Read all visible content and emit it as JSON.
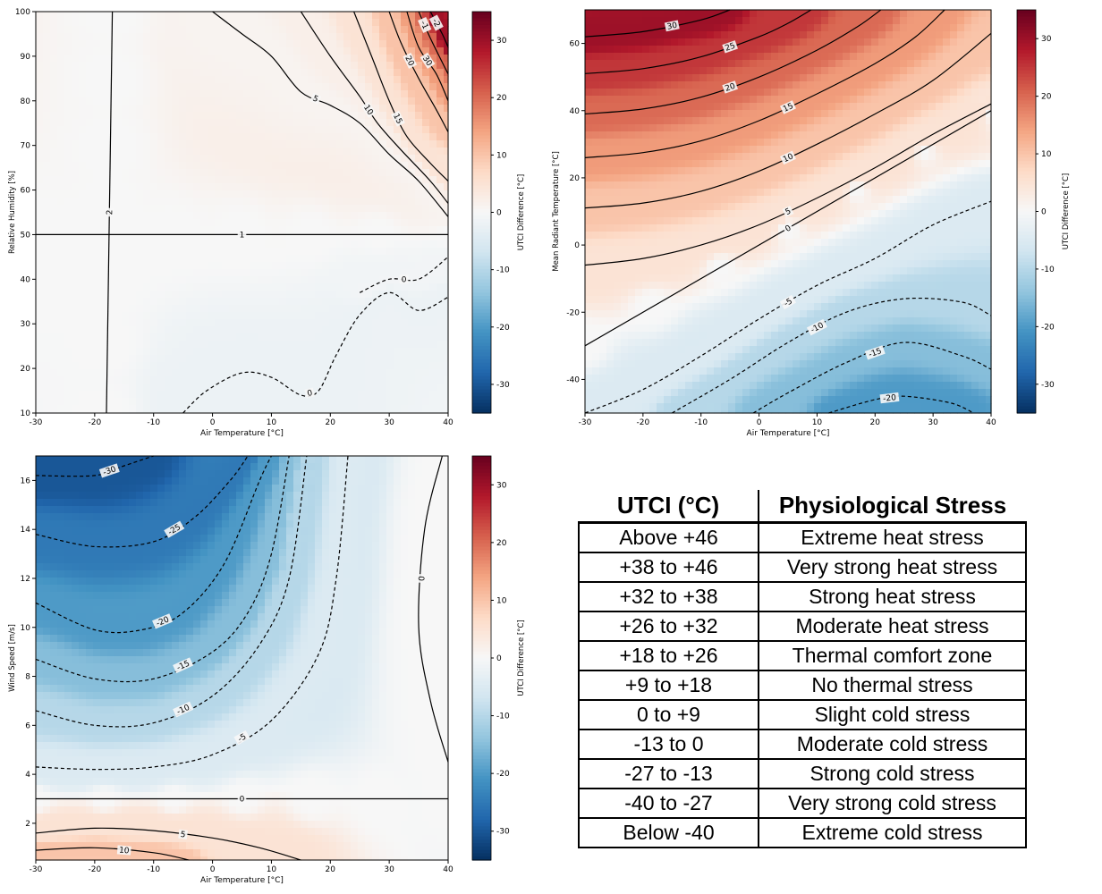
{
  "colorbar_label": "UTCI Difference [°C]",
  "colorbar_ticks": [
    30,
    20,
    10,
    0,
    -10,
    -20,
    -30
  ],
  "colormap": [
    "#67001f",
    "#b2182b",
    "#d6604d",
    "#f4a582",
    "#fddbc7",
    "#f7f7f7",
    "#d1e5f0",
    "#92c5de",
    "#4393c3",
    "#2166ac",
    "#053061"
  ],
  "chart_data": [
    {
      "type": "heatmap",
      "title": "",
      "xlabel": "Air Temperature [°C]",
      "ylabel": "Relative Humidity [%]",
      "xlim": [
        -30,
        40
      ],
      "ylim": [
        10,
        100
      ],
      "xticks": [
        -30,
        -20,
        -10,
        0,
        10,
        20,
        30,
        40
      ],
      "yticks": [
        10,
        20,
        30,
        40,
        50,
        60,
        70,
        80,
        90,
        100
      ],
      "color_range": [
        -35,
        35
      ],
      "contour_labels": [
        "0",
        "0",
        "1",
        "2",
        "5",
        "10",
        "15",
        "20",
        "30",
        "-1",
        "-2"
      ],
      "contours": [
        {
          "level": -2,
          "points": [
            [
              -5,
              10
            ],
            [
              -1,
              15
            ],
            [
              5,
              19
            ],
            [
              10,
              18
            ],
            [
              15,
              14
            ],
            [
              18,
              15
            ],
            [
              21,
              23
            ],
            [
              25,
              32
            ],
            [
              30,
              37
            ],
            [
              35,
              33
            ],
            [
              40,
              36
            ]
          ]
        },
        {
          "level": -1,
          "points": [
            [
              25,
              37
            ],
            [
              30,
              40
            ],
            [
              35,
              40
            ],
            [
              40,
              45
            ]
          ]
        },
        {
          "level": 0,
          "points": [
            [
              -30,
              50
            ],
            [
              40,
              50
            ]
          ]
        },
        {
          "level": 0,
          "points": [
            [
              -17,
              100
            ],
            [
              -18,
              10
            ]
          ]
        },
        {
          "level": 1,
          "points": [
            [
              0,
              100
            ],
            [
              5,
              95
            ],
            [
              10,
              90
            ],
            [
              15,
              82
            ],
            [
              20,
              79
            ],
            [
              25,
              75
            ],
            [
              30,
              68
            ],
            [
              35,
              62
            ],
            [
              40,
              54
            ]
          ]
        },
        {
          "level": 2,
          "points": [
            [
              15,
              100
            ],
            [
              20,
              90
            ],
            [
              25,
              81
            ],
            [
              28,
              75
            ],
            [
              32,
              69
            ],
            [
              37,
              62
            ],
            [
              40,
              57
            ]
          ]
        },
        {
          "level": 5,
          "points": [
            [
              24,
              100
            ],
            [
              27,
              90
            ],
            [
              30,
              80
            ],
            [
              33,
              72
            ],
            [
              37,
              66
            ],
            [
              40,
              62
            ]
          ]
        },
        {
          "level": 10,
          "points": [
            [
              30,
              100
            ],
            [
              32,
              93
            ],
            [
              35,
              85
            ],
            [
              38,
              78
            ],
            [
              40,
              73
            ]
          ]
        },
        {
          "level": 15,
          "points": [
            [
              33,
              100
            ],
            [
              35,
              92
            ],
            [
              38,
              86
            ],
            [
              40,
              80
            ]
          ]
        },
        {
          "level": 20,
          "points": [
            [
              35,
              100
            ],
            [
              37,
              94
            ],
            [
              40,
              86
            ]
          ]
        },
        {
          "level": 30,
          "points": [
            [
              37,
              100
            ],
            [
              39,
              95
            ],
            [
              40,
              92
            ]
          ]
        }
      ]
    },
    {
      "type": "heatmap",
      "title": "",
      "xlabel": "Air Temperature [°C]",
      "ylabel": "Mean Radiant Temperature [°C]",
      "xlim": [
        -30,
        40
      ],
      "ylim": [
        -50,
        70
      ],
      "xticks": [
        -30,
        -20,
        -10,
        0,
        10,
        20,
        30,
        40
      ],
      "yticks": [
        -40,
        -20,
        0,
        20,
        40,
        60
      ],
      "color_range": [
        -35,
        35
      ],
      "contour_labels": [
        "30",
        "25",
        "20",
        "15",
        "10",
        "5",
        "0",
        "-5",
        "-10",
        "-15",
        "-20"
      ],
      "contours": [
        {
          "level": 30,
          "points": [
            [
              -30,
              62
            ],
            [
              -20,
              63.5
            ],
            [
              -10,
              67
            ],
            [
              -5,
              70
            ]
          ]
        },
        {
          "level": 25,
          "points": [
            [
              -30,
              51
            ],
            [
              -20,
              52.5
            ],
            [
              -10,
              56
            ],
            [
              0,
              62
            ],
            [
              5,
              66
            ],
            [
              9,
              70
            ]
          ]
        },
        {
          "level": 20,
          "points": [
            [
              -30,
              39
            ],
            [
              -20,
              40.5
            ],
            [
              -10,
              44
            ],
            [
              0,
              50
            ],
            [
              10,
              58
            ],
            [
              17,
              65
            ],
            [
              21,
              70
            ]
          ]
        },
        {
          "level": 15,
          "points": [
            [
              -30,
              26
            ],
            [
              -20,
              27.5
            ],
            [
              -10,
              31
            ],
            [
              0,
              37
            ],
            [
              10,
              45
            ],
            [
              20,
              54
            ],
            [
              27,
              62
            ],
            [
              32,
              70
            ]
          ]
        },
        {
          "level": 10,
          "points": [
            [
              -30,
              11
            ],
            [
              -20,
              12.5
            ],
            [
              -10,
              16
            ],
            [
              0,
              22
            ],
            [
              10,
              30
            ],
            [
              20,
              39
            ],
            [
              30,
              49
            ],
            [
              40,
              63
            ]
          ]
        },
        {
          "level": 5,
          "points": [
            [
              -30,
              -6
            ],
            [
              -20,
              -4
            ],
            [
              -10,
              0
            ],
            [
              0,
              6
            ],
            [
              10,
              14
            ],
            [
              20,
              23
            ],
            [
              30,
              33
            ],
            [
              40,
              42
            ]
          ]
        },
        {
          "level": 0,
          "points": [
            [
              -30,
              -30
            ],
            [
              40,
              40
            ]
          ]
        },
        {
          "level": -5,
          "points": [
            [
              -30,
              -50
            ],
            [
              -20,
              -43
            ],
            [
              -10,
              -33
            ],
            [
              0,
              -22
            ],
            [
              10,
              -12
            ],
            [
              20,
              -4
            ],
            [
              30,
              6
            ],
            [
              40,
              13
            ]
          ]
        },
        {
          "level": -10,
          "points": [
            [
              -15,
              -50
            ],
            [
              -5,
              -40
            ],
            [
              5,
              -29
            ],
            [
              15,
              -20
            ],
            [
              25,
              -16
            ],
            [
              35,
              -17
            ],
            [
              40,
              -21
            ]
          ]
        },
        {
          "level": -15,
          "points": [
            [
              -1,
              -50
            ],
            [
              5,
              -44
            ],
            [
              15,
              -35
            ],
            [
              25,
              -29
            ],
            [
              35,
              -33
            ],
            [
              40,
              -37
            ]
          ]
        },
        {
          "level": -20,
          "points": [
            [
              12,
              -50
            ],
            [
              20,
              -46
            ],
            [
              25,
              -45
            ],
            [
              33,
              -47
            ],
            [
              37,
              -50
            ]
          ]
        }
      ]
    },
    {
      "type": "heatmap",
      "title": "",
      "xlabel": "Air Temperature [°C]",
      "ylabel": "Wind Speed [m/s]",
      "xlim": [
        -30,
        40
      ],
      "ylim": [
        0.5,
        17
      ],
      "xticks": [
        -30,
        -20,
        -10,
        0,
        10,
        20,
        30,
        40
      ],
      "yticks": [
        2,
        4,
        6,
        8,
        10,
        12,
        14,
        16
      ],
      "color_range": [
        -35,
        35
      ],
      "contour_labels": [
        "-30",
        "-25",
        "-20",
        "-15",
        "-10",
        "-5",
        "0",
        "0",
        "5",
        "10"
      ],
      "contours": [
        {
          "level": -30,
          "points": [
            [
              -30,
              16.2
            ],
            [
              -20,
              16.2
            ],
            [
              -15,
              16.6
            ],
            [
              -10,
              17
            ]
          ]
        },
        {
          "level": -25,
          "points": [
            [
              -30,
              13.8
            ],
            [
              -20,
              13.3
            ],
            [
              -10,
              13.5
            ],
            [
              -3,
              14.5
            ],
            [
              3,
              16
            ],
            [
              6,
              17
            ]
          ]
        },
        {
          "level": -20,
          "points": [
            [
              -30,
              11
            ],
            [
              -20,
              9.9
            ],
            [
              -12,
              9.9
            ],
            [
              -5,
              10.6
            ],
            [
              2,
              12.6
            ],
            [
              8,
              16
            ],
            [
              10,
              17
            ]
          ]
        },
        {
          "level": -15,
          "points": [
            [
              -30,
              8.7
            ],
            [
              -20,
              7.9
            ],
            [
              -10,
              7.9
            ],
            [
              0,
              9
            ],
            [
              6,
              10.6
            ],
            [
              10,
              13
            ],
            [
              13,
              17
            ]
          ]
        },
        {
          "level": -10,
          "points": [
            [
              -30,
              6.6
            ],
            [
              -20,
              6
            ],
            [
              -10,
              6.1
            ],
            [
              0,
              7.2
            ],
            [
              8,
              9.3
            ],
            [
              13,
              12
            ],
            [
              16,
              17
            ]
          ]
        },
        {
          "level": -5,
          "points": [
            [
              -30,
              4.3
            ],
            [
              -20,
              4.2
            ],
            [
              -10,
              4.3
            ],
            [
              0,
              4.8
            ],
            [
              10,
              6.2
            ],
            [
              18,
              8.9
            ],
            [
              21,
              12
            ],
            [
              23,
              17
            ]
          ]
        },
        {
          "level": 0,
          "points": [
            [
              -30,
              3
            ],
            [
              40,
              3
            ]
          ]
        },
        {
          "level": 0,
          "points": [
            [
              39,
              17
            ],
            [
              36,
              14
            ],
            [
              35,
              10
            ],
            [
              37,
              7
            ],
            [
              40,
              4.5
            ]
          ]
        },
        {
          "level": 5,
          "points": [
            [
              -30,
              1.6
            ],
            [
              -20,
              1.8
            ],
            [
              -10,
              1.7
            ],
            [
              0,
              1.4
            ],
            [
              8,
              1
            ],
            [
              15,
              0.5
            ]
          ]
        },
        {
          "level": 10,
          "points": [
            [
              -30,
              0.9
            ],
            [
              -20,
              1
            ],
            [
              -10,
              0.8
            ],
            [
              -4,
              0.5
            ]
          ]
        }
      ]
    }
  ],
  "table": {
    "headers": [
      "UTCI (°C)",
      "Physiological Stress"
    ],
    "rows": [
      [
        "Above +46",
        "Extreme heat stress"
      ],
      [
        "+38 to +46",
        "Very strong heat stress"
      ],
      [
        "+32 to +38",
        "Strong heat stress"
      ],
      [
        "+26 to +32",
        "Moderate heat stress"
      ],
      [
        "+18 to +26",
        "Thermal comfort zone"
      ],
      [
        "+9 to +18",
        "No thermal stress"
      ],
      [
        "0 to +9",
        "Slight cold stress"
      ],
      [
        "-13 to 0",
        "Moderate cold stress"
      ],
      [
        "-27 to -13",
        "Strong cold stress"
      ],
      [
        "-40 to -27",
        "Very strong cold stress"
      ],
      [
        "Below -40",
        "Extreme cold stress"
      ]
    ]
  }
}
